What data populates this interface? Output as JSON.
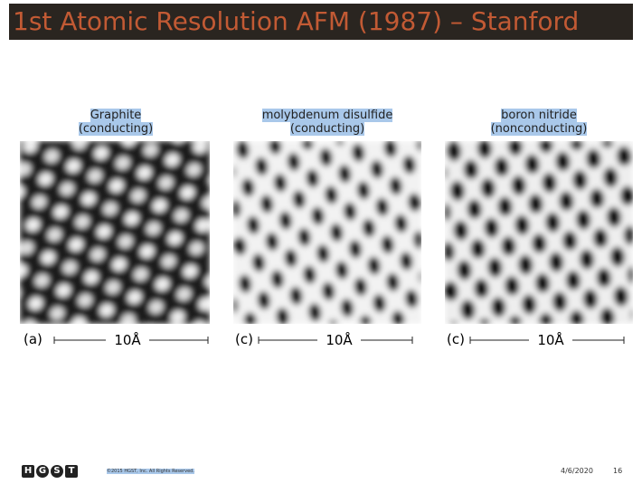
{
  "header": {
    "title": "1st Atomic Resolution AFM (1987) – Stanford"
  },
  "panels": [
    {
      "label": [
        "Graphite",
        "(conducting)"
      ],
      "tag": "(a)",
      "scale": "10Å"
    },
    {
      "label": [
        "molybdenum disulfide",
        "(conducting)"
      ],
      "tag": "(c)",
      "scale": "10Å"
    },
    {
      "label": [
        "boron nitride",
        "(nonconducting)"
      ],
      "tag": "(c)",
      "scale": "10Å"
    }
  ],
  "footer": {
    "logo": [
      "H",
      "G",
      "S",
      "T"
    ],
    "copyright": "©2015 HGST, Inc. All Rights Reserved.",
    "date": "4/6/2020",
    "page": "16"
  }
}
